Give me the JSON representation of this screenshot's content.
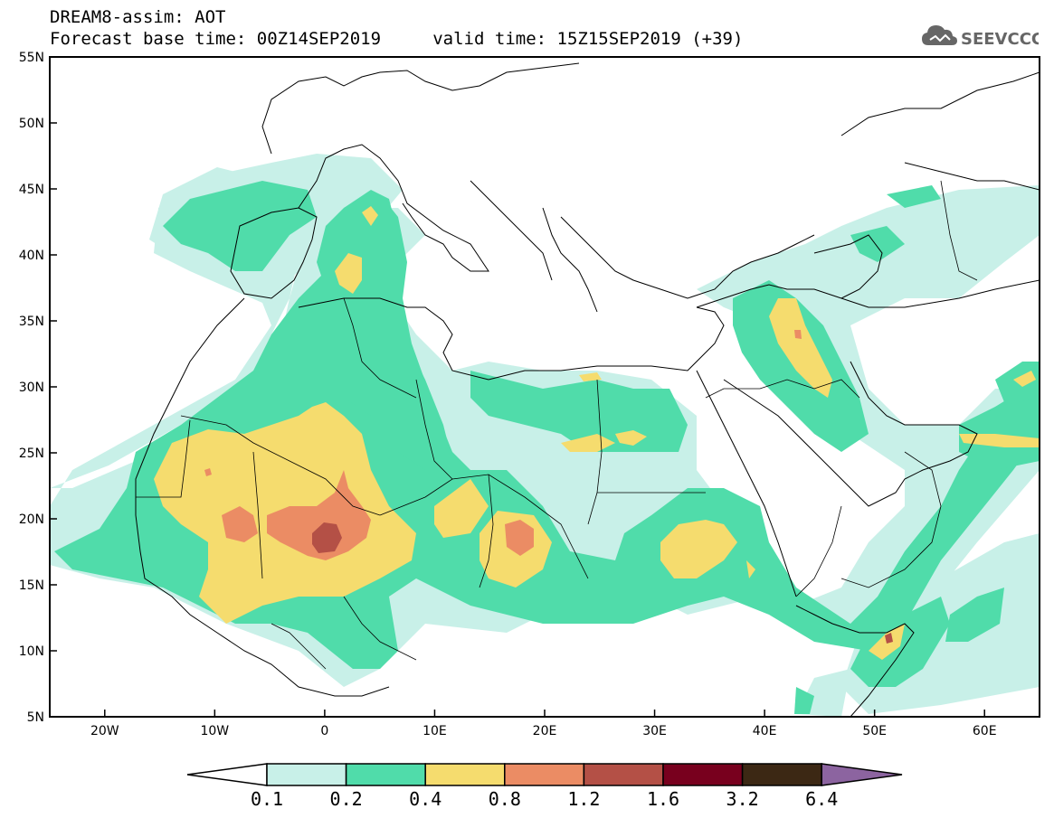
{
  "header": {
    "title": "DREAM8-assim: AOT",
    "base_time_line": "Forecast base time: 00Z14SEP2019     valid time: 15Z15SEP2019 (+39)"
  },
  "logo": {
    "text": "SEEVCCC",
    "icon": "cloud-icon"
  },
  "map": {
    "lat_labels": [
      "55N",
      "50N",
      "45N",
      "40N",
      "35N",
      "30N",
      "25N",
      "20N",
      "15N",
      "10N",
      "5N"
    ],
    "lon_labels": [
      "20W",
      "10W",
      "0",
      "10E",
      "20E",
      "30E",
      "40E",
      "50E",
      "60E"
    ],
    "lat_range": [
      5,
      55
    ],
    "lon_range": [
      -25,
      65
    ]
  },
  "legend": {
    "values": [
      "0.1",
      "0.2",
      "0.4",
      "0.8",
      "1.2",
      "1.6",
      "3.2",
      "6.4"
    ],
    "colors": [
      "#c8f0e8",
      "#50dcaa",
      "#f5dc6e",
      "#eb8c64",
      "#b45046",
      "#78001e",
      "#3c2814",
      "#8c64a0"
    ]
  }
}
